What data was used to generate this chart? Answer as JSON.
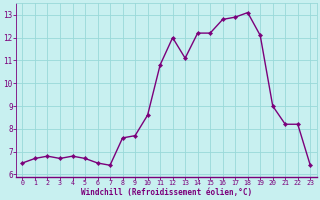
{
  "x": [
    0,
    1,
    2,
    3,
    4,
    5,
    6,
    7,
    8,
    9,
    10,
    11,
    12,
    13,
    14,
    15,
    16,
    17,
    18,
    19,
    20,
    21,
    22,
    23
  ],
  "y": [
    6.5,
    6.7,
    6.8,
    6.7,
    6.8,
    6.7,
    6.5,
    6.4,
    7.6,
    7.7,
    8.6,
    10.8,
    12.0,
    11.1,
    12.2,
    12.2,
    12.8,
    12.9,
    13.1,
    12.1,
    9.0,
    8.2,
    8.2,
    6.4
  ],
  "line_color": "#7b007b",
  "marker_color": "#7b007b",
  "bg_color": "#c8f0f0",
  "grid_color": "#99d9d9",
  "axis_color": "#7b007b",
  "xlabel": "Windchill (Refroidissement éolien,°C)",
  "xlabel_color": "#7b007b",
  "tick_color": "#7b007b",
  "xlim": [
    -0.5,
    23.5
  ],
  "ylim": [
    5.9,
    13.5
  ],
  "yticks": [
    6,
    7,
    8,
    9,
    10,
    11,
    12,
    13
  ],
  "xticks": [
    0,
    1,
    2,
    3,
    4,
    5,
    6,
    7,
    8,
    9,
    10,
    11,
    12,
    13,
    14,
    15,
    16,
    17,
    18,
    19,
    20,
    21,
    22,
    23
  ],
  "marker_size": 2.2,
  "line_width": 1.0
}
